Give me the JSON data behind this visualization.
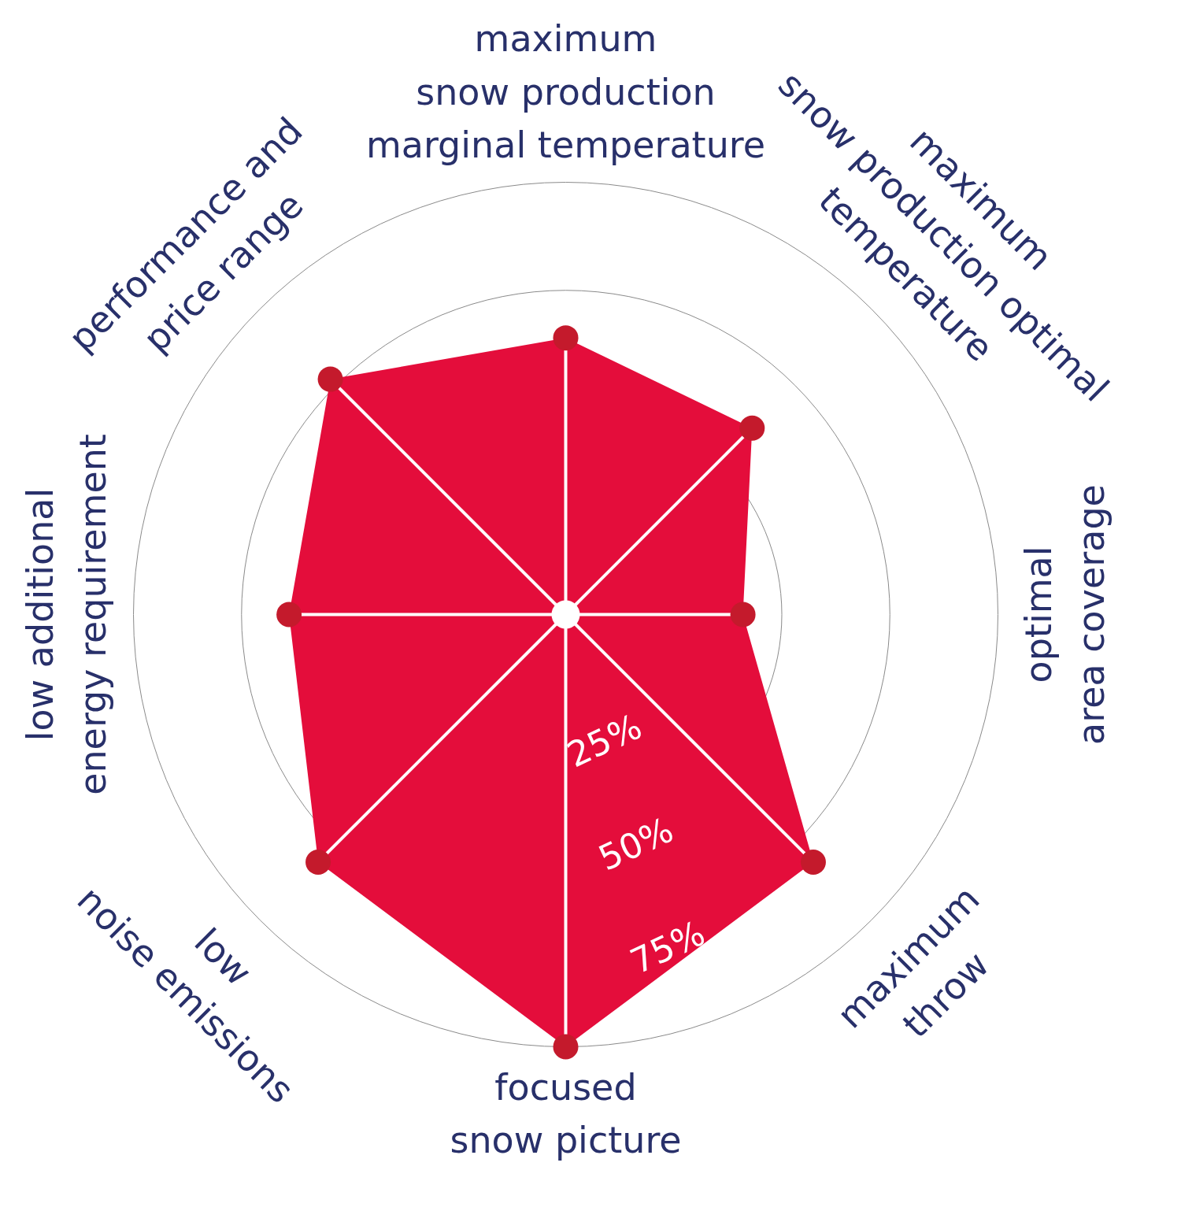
{
  "chart_data": {
    "type": "radar",
    "categories": [
      "maximum\nsnow production\nmarginal temperature",
      "maximum\nsnow production optimal\ntemperature",
      "optimal\narea coverage",
      "maximum\nthrow",
      "focused\nsnow picture",
      "low\nnoise emissions",
      "low additional\nenergy requirement",
      "performance and\nprice range"
    ],
    "series": [
      {
        "color": "#e40d3b",
        "values": [
          64,
          61,
          41,
          81,
          100,
          81,
          64,
          77
        ]
      }
    ],
    "ylim": [
      0,
      100
    ],
    "yticks": [
      {
        "value": 25,
        "label": "25%"
      },
      {
        "value": 50,
        "label": "50%"
      },
      {
        "value": 75,
        "label": "75%"
      }
    ],
    "grid": true,
    "marker": "circle"
  }
}
